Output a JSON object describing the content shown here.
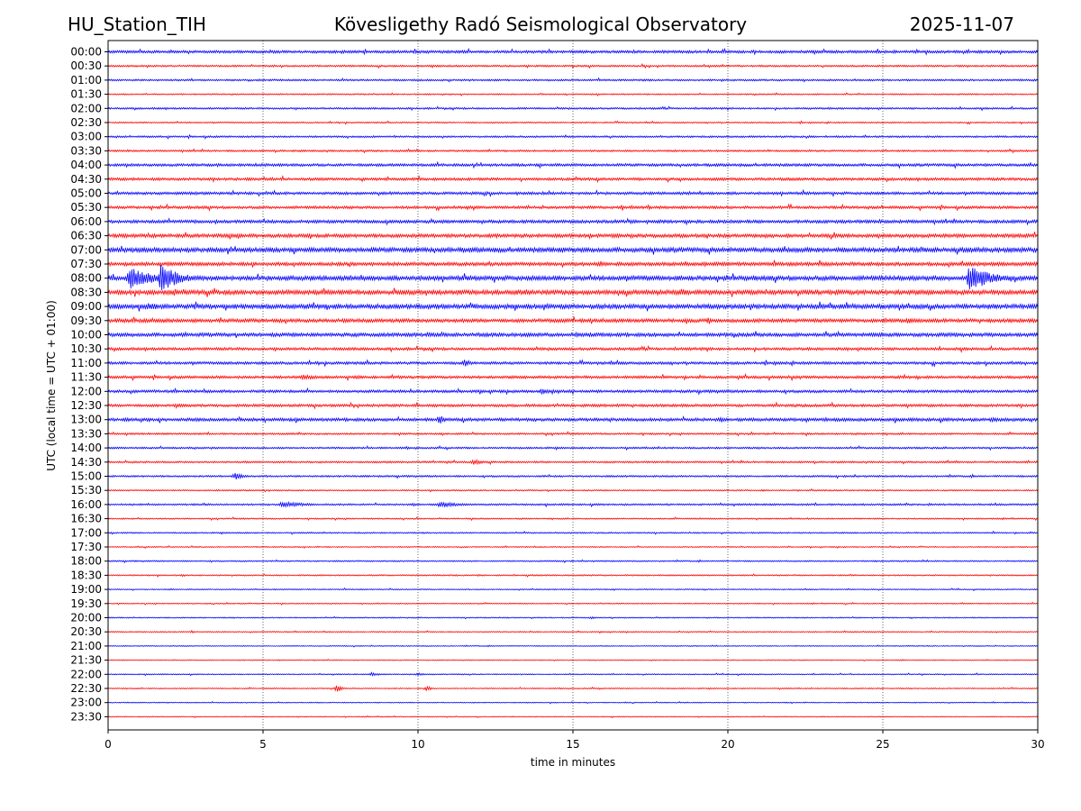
{
  "header": {
    "station": "HU_Station_TIH",
    "observatory": "Kövesligethy Radó Seismological Observatory",
    "date": "2025-11-07"
  },
  "chart_data": {
    "type": "line",
    "title": "Kövesligethy Radó Seismological Observatory",
    "xlabel": "time in minutes",
    "ylabel": "UTC (local time = UTC + 01:00)",
    "xlim": [
      0,
      30
    ],
    "xticks": [
      "0",
      "5",
      "10",
      "15",
      "20",
      "25",
      "30"
    ],
    "grid": "vertical dotted at every 5 minutes",
    "trace_colors": [
      "#0000ff",
      "#ff0000"
    ],
    "rows": [
      "00:00",
      "00:30",
      "01:00",
      "01:30",
      "02:00",
      "02:30",
      "03:00",
      "03:30",
      "04:00",
      "04:30",
      "05:00",
      "05:30",
      "06:00",
      "06:30",
      "07:00",
      "07:30",
      "08:00",
      "08:30",
      "09:00",
      "09:30",
      "10:00",
      "10:30",
      "11:00",
      "11:30",
      "12:00",
      "12:30",
      "13:00",
      "13:30",
      "14:00",
      "14:30",
      "15:00",
      "15:30",
      "16:00",
      "16:30",
      "17:00",
      "17:30",
      "18:00",
      "18:30",
      "19:00",
      "19:30",
      "20:00",
      "20:30",
      "21:00",
      "21:30",
      "22:00",
      "22:30",
      "23:00",
      "23:30"
    ],
    "noise_level": [
      3,
      2,
      2,
      1.5,
      2,
      1.5,
      2,
      2,
      3,
      3,
      3,
      3,
      3.5,
      4,
      5,
      4,
      5,
      5,
      5,
      4,
      4,
      3,
      3,
      3,
      3,
      3,
      3.5,
      2,
      2,
      2,
      2,
      1.5,
      2,
      1.5,
      1.5,
      1.2,
      1.5,
      1.5,
      1.2,
      1.2,
      1.2,
      1.2,
      1,
      1,
      1.2,
      1.2,
      1,
      1
    ],
    "events": [
      {
        "row": "07:00",
        "minute": 1.0,
        "amplitude": 6,
        "duration": 2.0
      },
      {
        "row": "07:00",
        "minute": 26.0,
        "amplitude": 5,
        "duration": 1.0
      },
      {
        "row": "06:30",
        "minute": 27.5,
        "amplitude": 4,
        "duration": 2.0
      },
      {
        "row": "08:00",
        "minute": 0.7,
        "amplitude": 24,
        "duration": 2.5
      },
      {
        "row": "08:00",
        "minute": 1.7,
        "amplitude": 30,
        "duration": 2.0
      },
      {
        "row": "08:00",
        "minute": 17.5,
        "amplitude": 4,
        "duration": 1.5
      },
      {
        "row": "08:00",
        "minute": 27.8,
        "amplitude": 28,
        "duration": 2.5
      },
      {
        "row": "08:30",
        "minute": 18.5,
        "amplitude": 8,
        "duration": 1.5
      },
      {
        "row": "09:00",
        "minute": 1.3,
        "amplitude": 9,
        "duration": 2.0
      },
      {
        "row": "09:00",
        "minute": 4.0,
        "amplitude": 4,
        "duration": 2.0
      },
      {
        "row": "09:30",
        "minute": 25.8,
        "amplitude": 6,
        "duration": 2.0
      },
      {
        "row": "10:00",
        "minute": 2.5,
        "amplitude": 6,
        "duration": 0.8
      },
      {
        "row": "10:00",
        "minute": 10.3,
        "amplitude": 5,
        "duration": 1.5
      },
      {
        "row": "10:00",
        "minute": 15.1,
        "amplitude": 5,
        "duration": 1.5
      },
      {
        "row": "11:00",
        "minute": 11.5,
        "amplitude": 8,
        "duration": 0.8
      },
      {
        "row": "11:30",
        "minute": 6.3,
        "amplitude": 7,
        "duration": 1.5
      },
      {
        "row": "11:30",
        "minute": 8.0,
        "amplitude": 5,
        "duration": 1.2
      },
      {
        "row": "12:00",
        "minute": 14.0,
        "amplitude": 7,
        "duration": 1.5
      },
      {
        "row": "12:30",
        "minute": 2.2,
        "amplitude": 6,
        "duration": 0.8
      },
      {
        "row": "13:00",
        "minute": 10.7,
        "amplitude": 12,
        "duration": 0.6
      },
      {
        "row": "13:00",
        "minute": 12.8,
        "amplitude": 5,
        "duration": 0.4
      },
      {
        "row": "13:00",
        "minute": 28.5,
        "amplitude": 5,
        "duration": 3.0
      },
      {
        "row": "14:30",
        "minute": 11.8,
        "amplitude": 7,
        "duration": 1.0
      },
      {
        "row": "14:30",
        "minute": 9.0,
        "amplitude": 3,
        "duration": 1.5
      },
      {
        "row": "15:00",
        "minute": 4.1,
        "amplitude": 8,
        "duration": 1.0
      },
      {
        "row": "16:00",
        "minute": 5.6,
        "amplitude": 7,
        "duration": 2.5
      },
      {
        "row": "16:00",
        "minute": 10.7,
        "amplitude": 6,
        "duration": 2.5
      },
      {
        "row": "16:00",
        "minute": 26.5,
        "amplitude": 3,
        "duration": 0.6
      },
      {
        "row": "18:30",
        "minute": 2.4,
        "amplitude": 3,
        "duration": 0.6
      },
      {
        "row": "20:00",
        "minute": 15.6,
        "amplitude": 3,
        "duration": 0.6
      },
      {
        "row": "20:30",
        "minute": 2.7,
        "amplitude": 3,
        "duration": 0.4
      },
      {
        "row": "22:00",
        "minute": 8.5,
        "amplitude": 4,
        "duration": 1.0
      },
      {
        "row": "22:00",
        "minute": 10.0,
        "amplitude": 3,
        "duration": 1.0
      },
      {
        "row": "22:30",
        "minute": 7.4,
        "amplitude": 9,
        "duration": 0.4
      },
      {
        "row": "22:30",
        "minute": 10.3,
        "amplitude": 7,
        "duration": 0.4
      }
    ]
  }
}
